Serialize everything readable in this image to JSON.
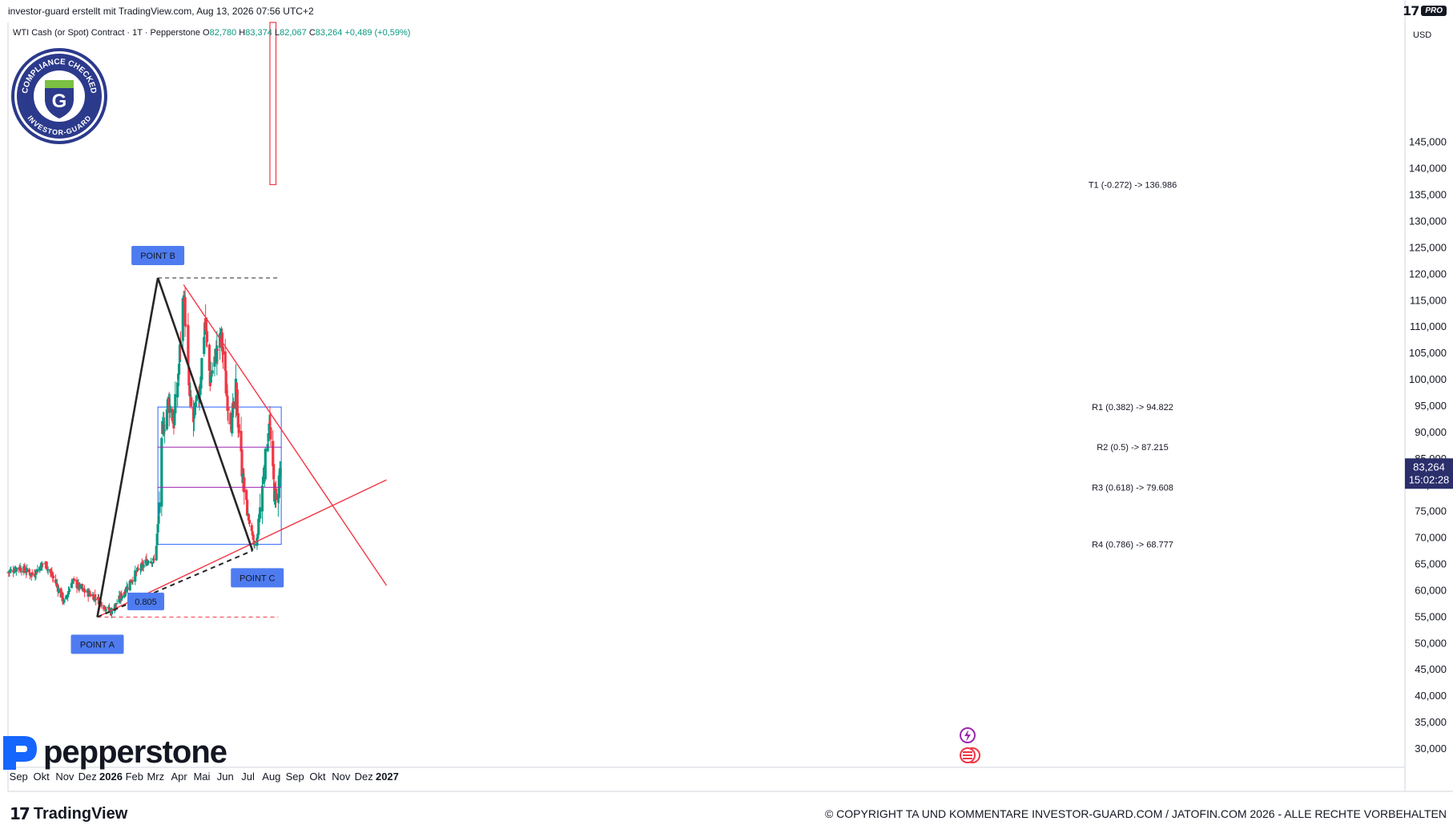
{
  "header": {
    "creator": "investor-guard erstellt mit TradingView.com, Aug 13, 2026 07:56 UTC+2",
    "brand_logo": "17",
    "pro_badge": "PRO"
  },
  "legend": {
    "symbol": "WTI Cash (or Spot) Contract · 1T · Pepperstone",
    "o_label": "O",
    "open": "82,780",
    "h_label": "H",
    "high": "83,374",
    "l_label": "L",
    "low": "82,067",
    "c_label": "C",
    "close": "83,264",
    "change": "+0,489 (+0,59%)"
  },
  "price_axis": {
    "currency": "USD",
    "last_price": "83,264",
    "countdown": "15:02:28"
  },
  "badge": {
    "top_text": "COMPLIANCE CHECKED",
    "bottom_text": "INVESTOR-GUARD",
    "letter": "G"
  },
  "pepperstone_logo": "pepperstone",
  "footer": {
    "copyright": "© COPYRIGHT TA UND KOMMENTARE INVESTOR-GUARD.COM / JATOFIN.COM 2026 - ALLE RECHTE VORBEHALTEN",
    "tradingview": "TradingView"
  },
  "colors": {
    "up": "#089981",
    "down": "#f23645",
    "red_line": "#f23645",
    "black_line": "#262626",
    "blue_box": "#2962ff",
    "purple_line": "#9c27b0",
    "label_bg": "#4e7cf0",
    "price_tag": "#2a2e6b"
  },
  "chart_data": {
    "type": "candlestick",
    "symbol": "WTI Cash (or Spot) Contract",
    "interval": "1T",
    "currency": "USD",
    "y_ticks": [
      "30,000",
      "35,000",
      "40,000",
      "45,000",
      "50,000",
      "55,000",
      "60,000",
      "65,000",
      "70,000",
      "75,000",
      "80,000",
      "85,000",
      "90,000",
      "95,000",
      "100,000",
      "105,000",
      "110,000",
      "115,000",
      "120,000",
      "125,000",
      "130,000",
      "135,000",
      "140,000",
      "145,000"
    ],
    "ylim": [
      28,
      147
    ],
    "x_ticks": [
      "Sep",
      "Okt",
      "Nov",
      "Dez",
      "2026",
      "Feb",
      "Mrz",
      "Apr",
      "Mai",
      "Jun",
      "Jul",
      "Aug",
      "Sep",
      "Okt",
      "Nov",
      "Dez",
      "2027"
    ],
    "price_path": [
      [
        "2025-08-18",
        63.5
      ],
      [
        "2025-09-01",
        64.5
      ],
      [
        "2025-09-20",
        63.0
      ],
      [
        "2025-10-05",
        65.5
      ],
      [
        "2025-10-20",
        61.5
      ],
      [
        "2025-11-01",
        57.5
      ],
      [
        "2025-11-10",
        62.0
      ],
      [
        "2025-11-25",
        60.0
      ],
      [
        "2025-12-10",
        59.0
      ],
      [
        "2025-12-24",
        57.0
      ],
      [
        "2026-01-01",
        56.0
      ],
      [
        "2026-01-15",
        59.0
      ],
      [
        "2026-02-01",
        63.0
      ],
      [
        "2026-02-20",
        66.0
      ],
      [
        "2026-02-28",
        65.5
      ],
      [
        "2026-03-05",
        74.0
      ],
      [
        "2026-03-10",
        90.0
      ],
      [
        "2026-03-18",
        96.0
      ],
      [
        "2026-03-25",
        92.0
      ],
      [
        "2026-04-01",
        103.0
      ],
      [
        "2026-04-07",
        117.0
      ],
      [
        "2026-04-15",
        96.0
      ],
      [
        "2026-04-20",
        92.0
      ],
      [
        "2026-04-28",
        98.0
      ],
      [
        "2026-05-05",
        111.0
      ],
      [
        "2026-05-12",
        100.0
      ],
      [
        "2026-05-20",
        105.0
      ],
      [
        "2026-05-27",
        108.0
      ],
      [
        "2026-06-03",
        97.0
      ],
      [
        "2026-06-10",
        92.0
      ],
      [
        "2026-06-15",
        98.0
      ],
      [
        "2026-06-22",
        85.0
      ],
      [
        "2026-06-28",
        76.0
      ],
      [
        "2026-07-03",
        73.0
      ],
      [
        "2026-07-08",
        69.0
      ],
      [
        "2026-07-12",
        68.0
      ],
      [
        "2026-07-15",
        73.0
      ],
      [
        "2026-07-20",
        80.0
      ],
      [
        "2026-07-25",
        86.0
      ],
      [
        "2026-07-29",
        93.0
      ],
      [
        "2026-08-02",
        83.0
      ],
      [
        "2026-08-07",
        76.0
      ],
      [
        "2026-08-10",
        80.0
      ],
      [
        "2026-08-13",
        83.264
      ]
    ],
    "points": [
      {
        "label": "POINT A",
        "date": "2025-12-14",
        "price": 55.0
      },
      {
        "label": "POINT B",
        "date": "2026-03-04",
        "price": 119.3
      },
      {
        "label": "POINT C",
        "date": "2026-07-07",
        "price": 67.6
      }
    ],
    "ratio_label": "0.805",
    "fib_levels": [
      {
        "label": "R1 (0.382) -> 94.822",
        "value": 94.822
      },
      {
        "label": "R2 (0.5) -> 87.215",
        "value": 87.215
      },
      {
        "label": "R3 (0.618) -> 79.608",
        "value": 79.608
      },
      {
        "label": "R4 (0.786) -> 68.777",
        "value": 68.777
      },
      {
        "label": "T1 (-0.272) -> 136.986",
        "value": 136.986
      }
    ],
    "target_box": {
      "from": "2026-07-30",
      "to": "2026-08-07",
      "low": 136.986,
      "high": 147.0
    },
    "fib_box": {
      "from": "2026-03-04",
      "to": "2026-08-14",
      "low": 68.777,
      "high": 94.822
    },
    "horizontal_refs": [
      {
        "value": 119.3,
        "from": "2026-03-04",
        "to": "2026-08-10",
        "color": "black"
      },
      {
        "value": 55.0,
        "from": "2025-12-14",
        "to": "2026-08-10",
        "color": "red"
      }
    ],
    "trendlines": [
      {
        "name": "upper",
        "from": [
          "2026-04-07",
          118.0
        ],
        "to": [
          "2026-12-31",
          61.0
        ]
      },
      {
        "name": "lower",
        "from": [
          "2025-12-14",
          55.0
        ],
        "to": [
          "2026-12-31",
          81.0
        ]
      },
      {
        "name": "abc-1",
        "from": [
          "2025-12-14",
          55.0
        ],
        "to": [
          "2026-03-04",
          119.3
        ]
      },
      {
        "name": "abc-2",
        "from": [
          "2026-03-04",
          119.3
        ],
        "to": [
          "2026-07-07",
          67.6
        ]
      }
    ]
  }
}
